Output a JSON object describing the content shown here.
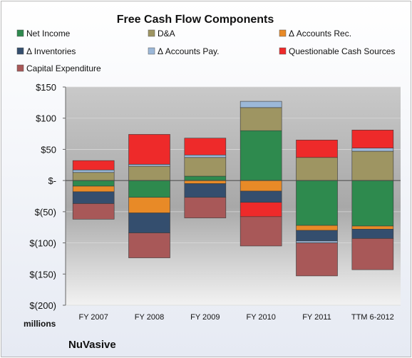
{
  "chart_data": {
    "type": "bar",
    "stacked": true,
    "title": "Free Cash Flow Components",
    "unit_label": "millions",
    "footer": "NuVasive",
    "categories": [
      "FY 2007",
      "FY 2008",
      "FY 2009",
      "FY 2010",
      "FY 2011",
      "TTM 6-2012"
    ],
    "ylim": [
      -200,
      150
    ],
    "yticks": [
      {
        "value": 150,
        "label": "$150"
      },
      {
        "value": 100,
        "label": "$100"
      },
      {
        "value": 50,
        "label": "$50"
      },
      {
        "value": 0,
        "label": "$-"
      },
      {
        "value": -50,
        "label": "$(50)"
      },
      {
        "value": -100,
        "label": "$(100)"
      },
      {
        "value": -150,
        "label": "$(150)"
      },
      {
        "value": -200,
        "label": "$(200)"
      }
    ],
    "legend_placement": "top",
    "series": [
      {
        "name": "Net Income",
        "color": "#2e8a4e",
        "values": [
          -9,
          -27,
          7,
          80,
          -72,
          -73
        ]
      },
      {
        "name": "D&A",
        "color": "#9e9562",
        "values": [
          13,
          23,
          30,
          37,
          37,
          47
        ]
      },
      {
        "name": "Δ Accounts Rec.",
        "color": "#e88a27",
        "values": [
          -9,
          -25,
          -5,
          -17,
          -8,
          -5
        ]
      },
      {
        "name": "Δ Inventories",
        "color": "#344e6e",
        "values": [
          -19,
          -32,
          -22,
          -18,
          -17,
          -15
        ]
      },
      {
        "name": "Δ Accounts Pay.",
        "color": "#9cb8d8",
        "values": [
          4,
          3,
          4,
          10,
          -3,
          5
        ]
      },
      {
        "name": "Questionable Cash Sources",
        "color": "#ee2a2a",
        "values": [
          15,
          48,
          27,
          0,
          28,
          29
        ]
      },
      {
        "name": "Capital Expenditure",
        "color": "#a85858",
        "values": [
          -25,
          -40,
          -33,
          -47,
          -53,
          -50
        ]
      }
    ],
    "negative_overrides": {
      "FY 2010": {
        "Questionable Cash Sources": -23
      }
    }
  }
}
